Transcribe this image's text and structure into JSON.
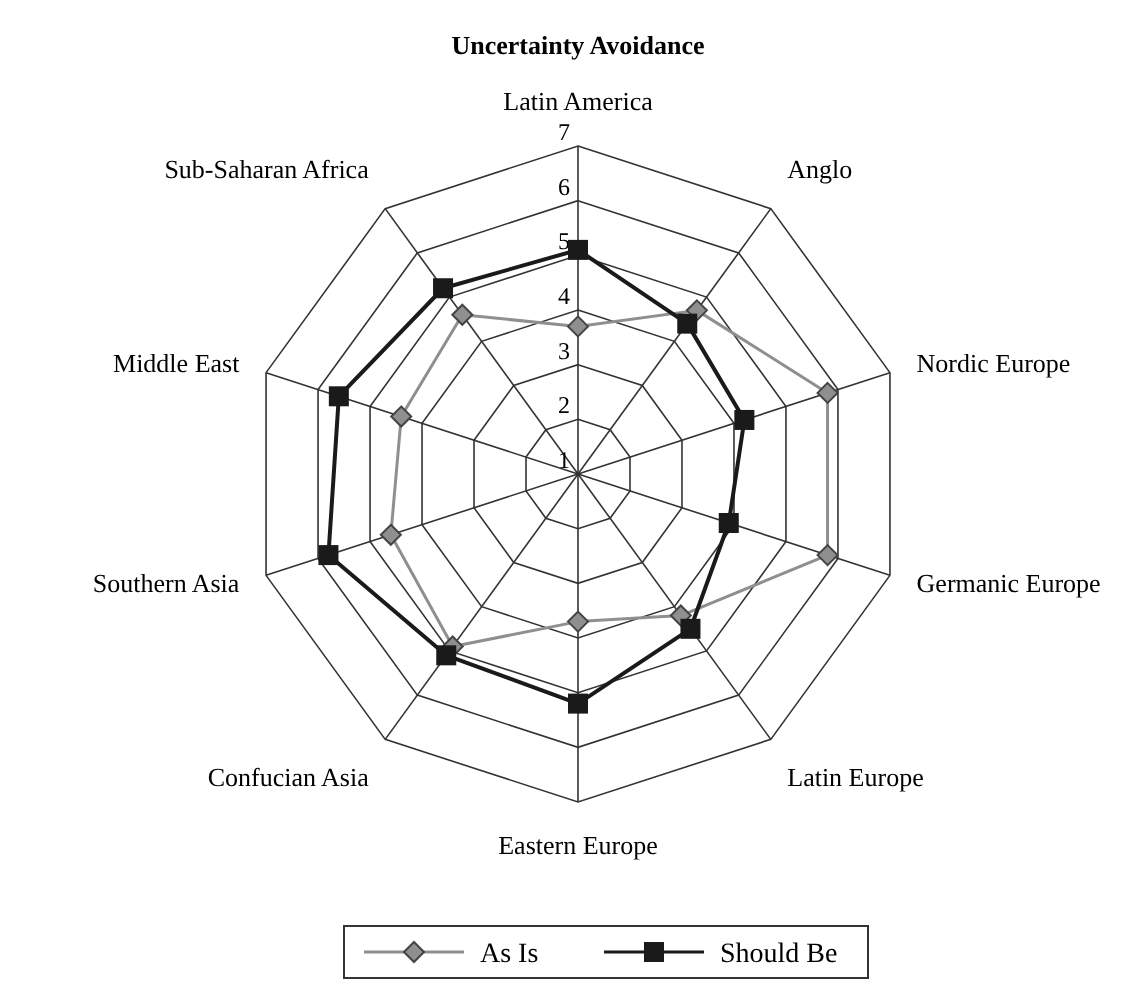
{
  "chart_data": {
    "type": "radar",
    "title": "Uncertainty Avoidance",
    "categories": [
      "Latin America",
      "Anglo",
      "Nordic Europe",
      "Germanic Europe",
      "Latin Europe",
      "Eastern Europe",
      "Confucian Asia",
      "Southern Asia",
      "Middle East",
      "Sub-Saharan Africa"
    ],
    "series": [
      {
        "name": "As Is",
        "color": "#8f8f8f",
        "marker": "diamond",
        "values": [
          3.7,
          4.7,
          5.8,
          5.8,
          4.2,
          3.7,
          4.9,
          4.6,
          4.4,
          4.6
        ]
      },
      {
        "name": "Should Be",
        "color": "#1a1a1a",
        "marker": "square",
        "values": [
          5.1,
          4.4,
          4.2,
          3.9,
          4.5,
          5.2,
          5.1,
          5.8,
          5.6,
          5.2
        ]
      }
    ],
    "ylim": [
      1,
      7
    ],
    "yticks": [
      1,
      2,
      3,
      4,
      5,
      6,
      7
    ],
    "grid": true,
    "legend": "bottom"
  }
}
